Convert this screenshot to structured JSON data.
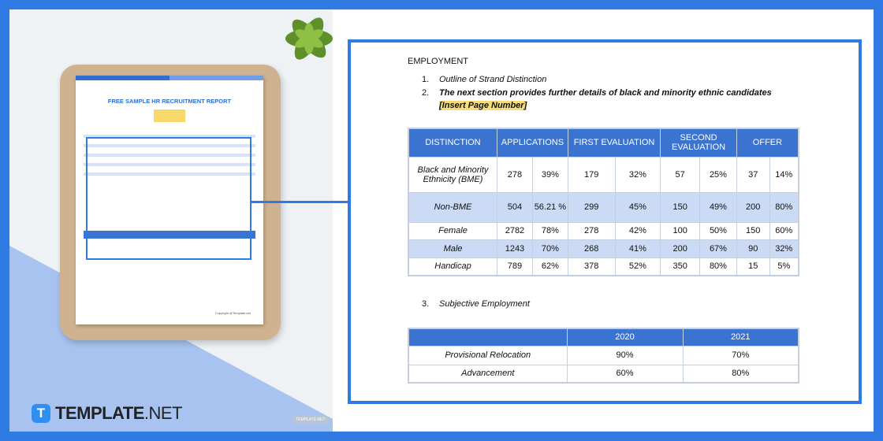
{
  "brand": {
    "logo_letter": "T",
    "name_bold": "TEMPLATE",
    "name_light": ".NET",
    "watermark": "TEMPLATE.NET",
    "accent": "#2f7be3"
  },
  "mockup": {
    "title": "FREE SAMPLE HR RECRUITMENT REPORT",
    "copyright": "Copyright @Template.net"
  },
  "detail": {
    "heading": "EMPLOYMENT",
    "list": [
      {
        "num": "1.",
        "text": "Outline of Strand Distinction"
      },
      {
        "num": "2.",
        "text": "The next section provides further details of black and minority ethnic candidates ",
        "highlight": "[Insert Page Number]"
      },
      {
        "num": "3.",
        "text": "Subjective Employment"
      }
    ],
    "table1": {
      "headers": [
        "DISTINCTION",
        "APPLICATIONS",
        "FIRST EVALUATION",
        "SECOND EVALUATION",
        "OFFER"
      ],
      "rows": [
        [
          "Black and Minority Ethnicity (BME)",
          "278",
          "39%",
          "179",
          "32%",
          "57",
          "25%",
          "37",
          "14%"
        ],
        [
          "Non-BME",
          "504",
          "56.21 %",
          "299",
          "45%",
          "150",
          "49%",
          "200",
          "80%"
        ],
        [
          "Female",
          "2782",
          "78%",
          "278",
          "42%",
          "100",
          "50%",
          "150",
          "60%"
        ],
        [
          "Male",
          "1243",
          "70%",
          "268",
          "41%",
          "200",
          "67%",
          "90",
          "32%"
        ],
        [
          "Handicap",
          "789",
          "62%",
          "378",
          "52%",
          "350",
          "80%",
          "15",
          "5%"
        ]
      ]
    },
    "table2": {
      "headers": [
        "",
        "2020",
        "2021"
      ],
      "rows": [
        [
          "Provisional Relocation",
          "90%",
          "70%"
        ],
        [
          "Advancement",
          "60%",
          "80%"
        ]
      ]
    }
  }
}
